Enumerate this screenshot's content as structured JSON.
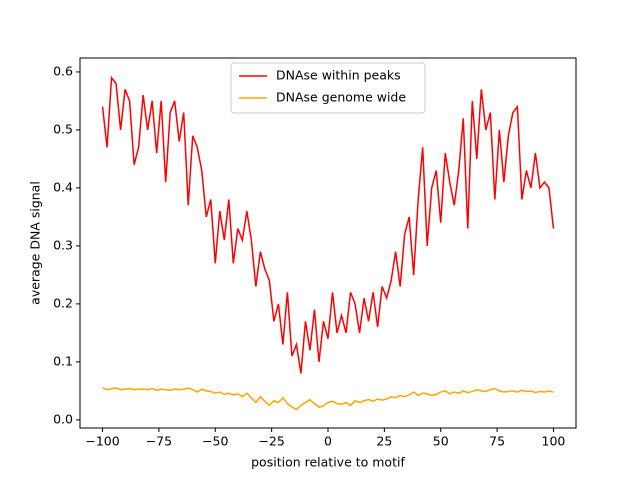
{
  "chart_data": {
    "type": "line",
    "xlabel": "position relative to motif",
    "ylabel": "average DNA signal",
    "x": [
      -100,
      -98,
      -96,
      -94,
      -92,
      -90,
      -88,
      -86,
      -84,
      -82,
      -80,
      -78,
      -76,
      -74,
      -72,
      -70,
      -68,
      -66,
      -64,
      -62,
      -60,
      -58,
      -56,
      -54,
      -52,
      -50,
      -48,
      -46,
      -44,
      -42,
      -40,
      -38,
      -36,
      -34,
      -32,
      -30,
      -28,
      -26,
      -24,
      -22,
      -20,
      -18,
      -16,
      -14,
      -12,
      -10,
      -8,
      -6,
      -4,
      -2,
      0,
      2,
      4,
      6,
      8,
      10,
      12,
      14,
      16,
      18,
      20,
      22,
      24,
      26,
      28,
      30,
      32,
      34,
      36,
      38,
      40,
      42,
      44,
      46,
      48,
      50,
      52,
      54,
      56,
      58,
      60,
      62,
      64,
      66,
      68,
      70,
      72,
      74,
      76,
      78,
      80,
      82,
      84,
      86,
      88,
      90,
      92,
      94,
      96,
      98,
      100
    ],
    "series": [
      {
        "name": "DNAse within peaks",
        "color": "#ff0000",
        "values": [
          0.54,
          0.47,
          0.59,
          0.58,
          0.5,
          0.57,
          0.55,
          0.44,
          0.47,
          0.56,
          0.5,
          0.55,
          0.46,
          0.55,
          0.41,
          0.53,
          0.55,
          0.48,
          0.53,
          0.37,
          0.49,
          0.47,
          0.43,
          0.35,
          0.38,
          0.27,
          0.36,
          0.31,
          0.38,
          0.27,
          0.33,
          0.31,
          0.36,
          0.31,
          0.23,
          0.29,
          0.26,
          0.24,
          0.17,
          0.2,
          0.13,
          0.22,
          0.11,
          0.13,
          0.08,
          0.17,
          0.12,
          0.19,
          0.1,
          0.17,
          0.14,
          0.22,
          0.15,
          0.18,
          0.15,
          0.22,
          0.2,
          0.15,
          0.21,
          0.17,
          0.22,
          0.16,
          0.23,
          0.21,
          0.24,
          0.29,
          0.23,
          0.32,
          0.35,
          0.25,
          0.38,
          0.47,
          0.3,
          0.4,
          0.43,
          0.34,
          0.46,
          0.41,
          0.37,
          0.43,
          0.52,
          0.33,
          0.55,
          0.45,
          0.57,
          0.5,
          0.53,
          0.38,
          0.5,
          0.41,
          0.49,
          0.53,
          0.54,
          0.38,
          0.43,
          0.4,
          0.46,
          0.4,
          0.41,
          0.4,
          0.33
        ]
      },
      {
        "name": "DNAse genome wide",
        "color": "#ffa500",
        "values": [
          0.055,
          0.052,
          0.054,
          0.055,
          0.052,
          0.053,
          0.054,
          0.052,
          0.053,
          0.053,
          0.052,
          0.054,
          0.051,
          0.053,
          0.052,
          0.051,
          0.053,
          0.052,
          0.053,
          0.055,
          0.052,
          0.048,
          0.053,
          0.05,
          0.049,
          0.046,
          0.048,
          0.044,
          0.046,
          0.043,
          0.045,
          0.04,
          0.046,
          0.038,
          0.03,
          0.04,
          0.032,
          0.025,
          0.033,
          0.03,
          0.038,
          0.028,
          0.022,
          0.018,
          0.025,
          0.03,
          0.035,
          0.028,
          0.022,
          0.024,
          0.03,
          0.032,
          0.028,
          0.027,
          0.03,
          0.025,
          0.033,
          0.03,
          0.033,
          0.035,
          0.032,
          0.036,
          0.034,
          0.036,
          0.04,
          0.038,
          0.042,
          0.04,
          0.043,
          0.048,
          0.042,
          0.046,
          0.045,
          0.042,
          0.044,
          0.048,
          0.05,
          0.045,
          0.048,
          0.046,
          0.05,
          0.047,
          0.049,
          0.052,
          0.05,
          0.049,
          0.052,
          0.054,
          0.05,
          0.048,
          0.049,
          0.05,
          0.048,
          0.051,
          0.049,
          0.05,
          0.047,
          0.049,
          0.048,
          0.05,
          0.048
        ]
      }
    ],
    "xlim": [
      -110,
      110
    ],
    "xticks": [
      {
        "value": -100,
        "label": "−100"
      },
      {
        "value": -75,
        "label": "−75"
      },
      {
        "value": -50,
        "label": "−50"
      },
      {
        "value": -25,
        "label": "−25"
      },
      0,
      25,
      50,
      75,
      100
    ],
    "ylim": [
      -0.014,
      0.624
    ],
    "yticks": [
      {
        "value": 0,
        "label": "0.0"
      },
      0.1,
      0.2,
      0.3,
      0.4,
      0.5,
      0.6
    ],
    "legend": "upper center"
  }
}
